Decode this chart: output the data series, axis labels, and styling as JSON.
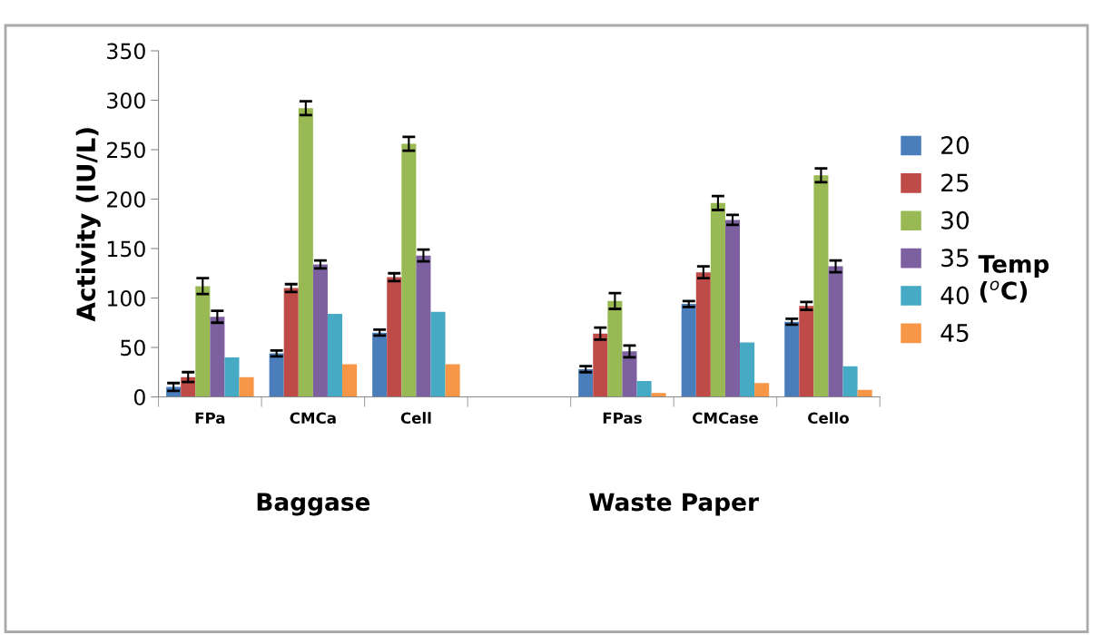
{
  "chart_data": {
    "type": "bar",
    "ylabel": "Activity (IU/L)",
    "legend_title": "Temp\n($^{o}$C)",
    "categories": [
      "FPa",
      "CMCa",
      "Cell",
      null,
      "FPas",
      "CMCase",
      "Cello"
    ],
    "series": [
      {
        "name": "20",
        "color": "#4a7ebb",
        "values": [
          10,
          44,
          65,
          null,
          28,
          94,
          76
        ],
        "errors": [
          4,
          3,
          3,
          null,
          3,
          3,
          3
        ]
      },
      {
        "name": "25",
        "color": "#be4b48",
        "values": [
          20,
          110,
          121,
          null,
          64,
          126,
          92
        ],
        "errors": [
          5,
          4,
          4,
          null,
          6,
          6,
          4
        ]
      },
      {
        "name": "30",
        "color": "#98b954",
        "values": [
          112,
          292,
          256,
          null,
          97,
          196,
          224
        ],
        "errors": [
          8,
          7,
          7,
          null,
          8,
          7,
          7
        ]
      },
      {
        "name": "35",
        "color": "#7d60a0",
        "values": [
          81,
          134,
          143,
          null,
          46,
          179,
          132
        ],
        "errors": [
          6,
          4,
          6,
          null,
          6,
          5,
          6
        ]
      },
      {
        "name": "40",
        "color": "#46aac5",
        "values": [
          40,
          84,
          86,
          null,
          16,
          55,
          31
        ]
      },
      {
        "name": "45",
        "color": "#f79646",
        "values": [
          20,
          33,
          33,
          null,
          4,
          14,
          7
        ]
      }
    ],
    "ylim": [
      0,
      350
    ],
    "yticks": [
      0,
      50,
      100,
      150,
      200,
      250,
      300,
      350
    ],
    "grid": false,
    "legend": "right",
    "annotations": [
      "Baggase",
      "Waste Paper"
    ]
  }
}
